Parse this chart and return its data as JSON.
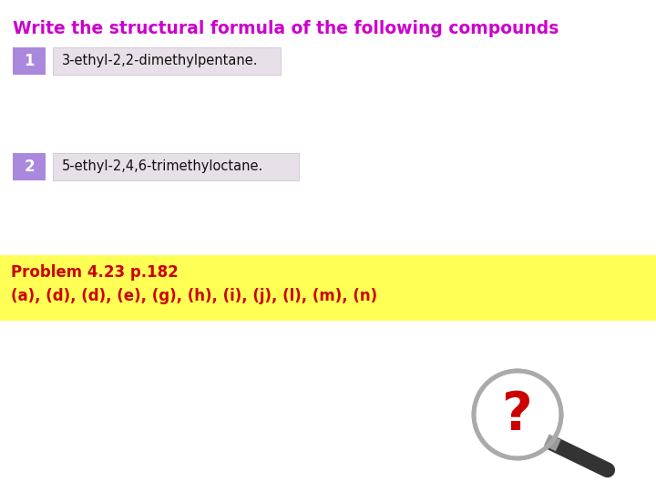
{
  "title": "Write the structural formula of the following compounds",
  "title_color": "#cc00cc",
  "title_fontsize": 13.5,
  "item1_num": "1",
  "item1_text": "3-ethyl-2,2-dimethylpentane.",
  "item2_num": "2",
  "item2_text": "5-ethyl-2,4,6-trimethyloctane.",
  "num_box_color": "#aa88dd",
  "text_box_color": "#e8e0e8",
  "text_box_border": "#ccbbcc",
  "item_text_color": "#111111",
  "item_num_color": "#ffffff",
  "problem_bg_color": "#ffff55",
  "problem_line1": "Problem 4.23 p.182",
  "problem_line2": "(a), (d), (d), (e), (g), (h), (i), (j), (l), (m), (n)",
  "problem_text_color": "#cc0000",
  "problem_fontsize": 12,
  "bg_color": "#ffffff",
  "item_fontsize": 10.5,
  "item_num_fontsize": 12
}
